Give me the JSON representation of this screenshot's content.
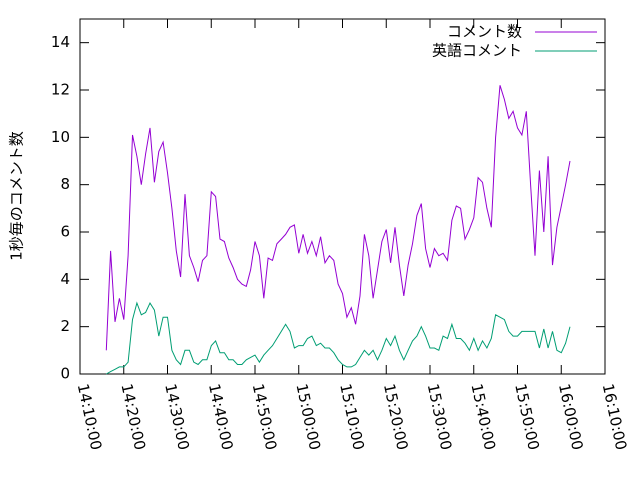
{
  "chart_data": {
    "type": "line",
    "y_label": "1秒毎のコメント数",
    "legend": "top-right",
    "xlim": [
      "14:10:00",
      "16:10:00"
    ],
    "xticks": [
      "14:10:00",
      "14:20:00",
      "14:30:00",
      "14:40:00",
      "14:50:00",
      "15:00:00",
      "15:10:00",
      "15:20:00",
      "15:30:00",
      "15:40:00",
      "15:50:00",
      "16:00:00",
      "16:10:00"
    ],
    "ylim": [
      0,
      15
    ],
    "yticks": [
      0,
      2,
      4,
      6,
      8,
      10,
      12,
      14
    ],
    "x": [
      "14:16:00",
      "14:17:00",
      "14:18:00",
      "14:19:00",
      "14:20:00",
      "14:21:00",
      "14:22:00",
      "14:23:00",
      "14:24:00",
      "14:25:00",
      "14:26:00",
      "14:27:00",
      "14:28:00",
      "14:29:00",
      "14:30:00",
      "14:31:00",
      "14:32:00",
      "14:33:00",
      "14:34:00",
      "14:35:00",
      "14:36:00",
      "14:37:00",
      "14:38:00",
      "14:39:00",
      "14:40:00",
      "14:41:00",
      "14:42:00",
      "14:43:00",
      "14:44:00",
      "14:45:00",
      "14:46:00",
      "14:47:00",
      "14:48:00",
      "14:49:00",
      "14:50:00",
      "14:51:00",
      "14:52:00",
      "14:53:00",
      "14:54:00",
      "14:55:00",
      "14:56:00",
      "14:57:00",
      "14:58:00",
      "14:59:00",
      "15:00:00",
      "15:01:00",
      "15:02:00",
      "15:03:00",
      "15:04:00",
      "15:05:00",
      "15:06:00",
      "15:07:00",
      "15:08:00",
      "15:09:00",
      "15:10:00",
      "15:11:00",
      "15:12:00",
      "15:13:00",
      "15:14:00",
      "15:15:00",
      "15:16:00",
      "15:17:00",
      "15:18:00",
      "15:19:00",
      "15:20:00",
      "15:21:00",
      "15:22:00",
      "15:23:00",
      "15:24:00",
      "15:25:00",
      "15:26:00",
      "15:27:00",
      "15:28:00",
      "15:29:00",
      "15:30:00",
      "15:31:00",
      "15:32:00",
      "15:33:00",
      "15:34:00",
      "15:35:00",
      "15:36:00",
      "15:37:00",
      "15:38:00",
      "15:39:00",
      "15:40:00",
      "15:41:00",
      "15:42:00",
      "15:43:00",
      "15:44:00",
      "15:45:00",
      "15:46:00",
      "15:47:00",
      "15:48:00",
      "15:49:00",
      "15:50:00",
      "15:51:00",
      "15:52:00",
      "15:53:00",
      "15:54:00",
      "15:55:00",
      "15:56:00",
      "15:57:00",
      "15:58:00",
      "15:59:00",
      "16:00:00",
      "16:01:00",
      "16:02:00"
    ],
    "series": [
      {
        "name": "コメント数",
        "color": "#9400d3",
        "values": [
          1.0,
          5.2,
          2.2,
          3.2,
          2.3,
          5.0,
          10.1,
          9.2,
          8.0,
          9.3,
          10.4,
          8.1,
          9.4,
          9.8,
          8.5,
          7.0,
          5.2,
          4.1,
          7.6,
          5.0,
          4.5,
          3.9,
          4.8,
          5.0,
          7.7,
          7.5,
          5.7,
          5.6,
          4.9,
          4.5,
          4.0,
          3.8,
          3.7,
          4.4,
          5.6,
          5.0,
          3.2,
          4.9,
          4.8,
          5.5,
          5.7,
          5.9,
          6.2,
          6.3,
          5.1,
          5.9,
          5.1,
          5.6,
          5.0,
          5.8,
          4.7,
          5.0,
          4.8,
          3.8,
          3.4,
          2.4,
          2.8,
          2.1,
          3.3,
          5.9,
          5.0,
          3.2,
          4.4,
          5.6,
          6.1,
          4.7,
          6.2,
          4.6,
          3.3,
          4.6,
          5.5,
          6.7,
          7.2,
          5.3,
          4.5,
          5.3,
          5.0,
          5.1,
          4.8,
          6.5,
          7.1,
          7.0,
          5.7,
          6.1,
          6.6,
          8.3,
          8.1,
          7.0,
          6.2,
          10.0,
          12.2,
          11.6,
          10.8,
          11.1,
          10.4,
          10.1,
          11.1,
          8.0,
          5.0,
          8.6,
          6.0,
          9.2,
          4.6,
          6.2,
          7.1,
          8.0,
          9.0
        ]
      },
      {
        "name": "英語コメント",
        "color": "#009e73",
        "values": [
          0,
          0.1,
          0.2,
          0.3,
          0.3,
          0.5,
          2.3,
          3.0,
          2.5,
          2.6,
          3.0,
          2.7,
          1.6,
          2.4,
          2.4,
          1.0,
          0.6,
          0.4,
          1.0,
          1.0,
          0.5,
          0.4,
          0.6,
          0.6,
          1.2,
          1.4,
          0.9,
          0.9,
          0.6,
          0.6,
          0.4,
          0.4,
          0.6,
          0.7,
          0.8,
          0.5,
          0.8,
          1.0,
          1.2,
          1.5,
          1.8,
          2.1,
          1.8,
          1.1,
          1.2,
          1.2,
          1.5,
          1.6,
          1.2,
          1.3,
          1.1,
          1.1,
          0.9,
          0.6,
          0.4,
          0.3,
          0.3,
          0.4,
          0.7,
          1.0,
          0.8,
          1.0,
          0.6,
          1.0,
          1.5,
          1.2,
          1.6,
          1.0,
          0.6,
          1.0,
          1.4,
          1.6,
          2.0,
          1.6,
          1.1,
          1.1,
          1.0,
          1.6,
          1.5,
          2.1,
          1.5,
          1.5,
          1.3,
          1.0,
          1.5,
          1.0,
          1.4,
          1.1,
          1.5,
          2.5,
          2.4,
          2.3,
          1.8,
          1.6,
          1.6,
          1.8,
          1.8,
          1.8,
          1.8,
          1.1,
          1.9,
          1.1,
          1.8,
          1.0,
          0.9,
          1.3,
          2.0
        ]
      }
    ]
  }
}
